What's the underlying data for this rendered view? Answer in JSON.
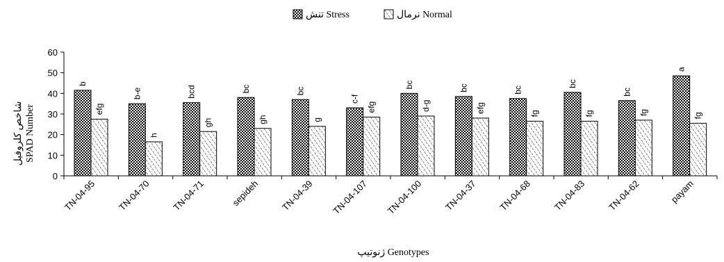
{
  "chart_data": {
    "type": "bar",
    "title": "",
    "xlabel": "ژنوتیپ Genotypes",
    "ylabel": "شاخص کلروفیل",
    "ylabel2": "SPAD Number",
    "ylim": [
      0,
      60
    ],
    "yticks": [
      0,
      10,
      20,
      30,
      40,
      50,
      60
    ],
    "grid": false,
    "legend_position": "top-center",
    "categories": [
      "TN-04-95",
      "TN-04-70",
      "TN-04-71",
      "sepideh",
      "TN-04-39",
      "TN-04-107",
      "TN-04-100",
      "TN-04-37",
      "TN-04-68",
      "TN-04-83",
      "TN-04-62",
      "payam"
    ],
    "series": [
      {
        "name": "تنش Stress",
        "pattern": "checker",
        "values": [
          41.5,
          35,
          35.5,
          38,
          37,
          33,
          40,
          38.5,
          37.5,
          40.5,
          36.5,
          48.5
        ],
        "labels": [
          "b",
          "b-e",
          "bcd",
          "bc",
          "bc",
          "c-f",
          "bc",
          "bc",
          "bc",
          "bc",
          "bc",
          "a"
        ]
      },
      {
        "name": "نرمال Normal",
        "pattern": "hatch",
        "values": [
          27.5,
          16.5,
          21.5,
          23,
          24,
          28.5,
          29,
          28,
          26.5,
          26.5,
          27,
          25.5
        ],
        "labels": [
          "efg",
          "h",
          "gh",
          "gh",
          "g",
          "efg",
          "d-g",
          "efg",
          "fg",
          "fg",
          "fg",
          "fg"
        ]
      }
    ]
  }
}
